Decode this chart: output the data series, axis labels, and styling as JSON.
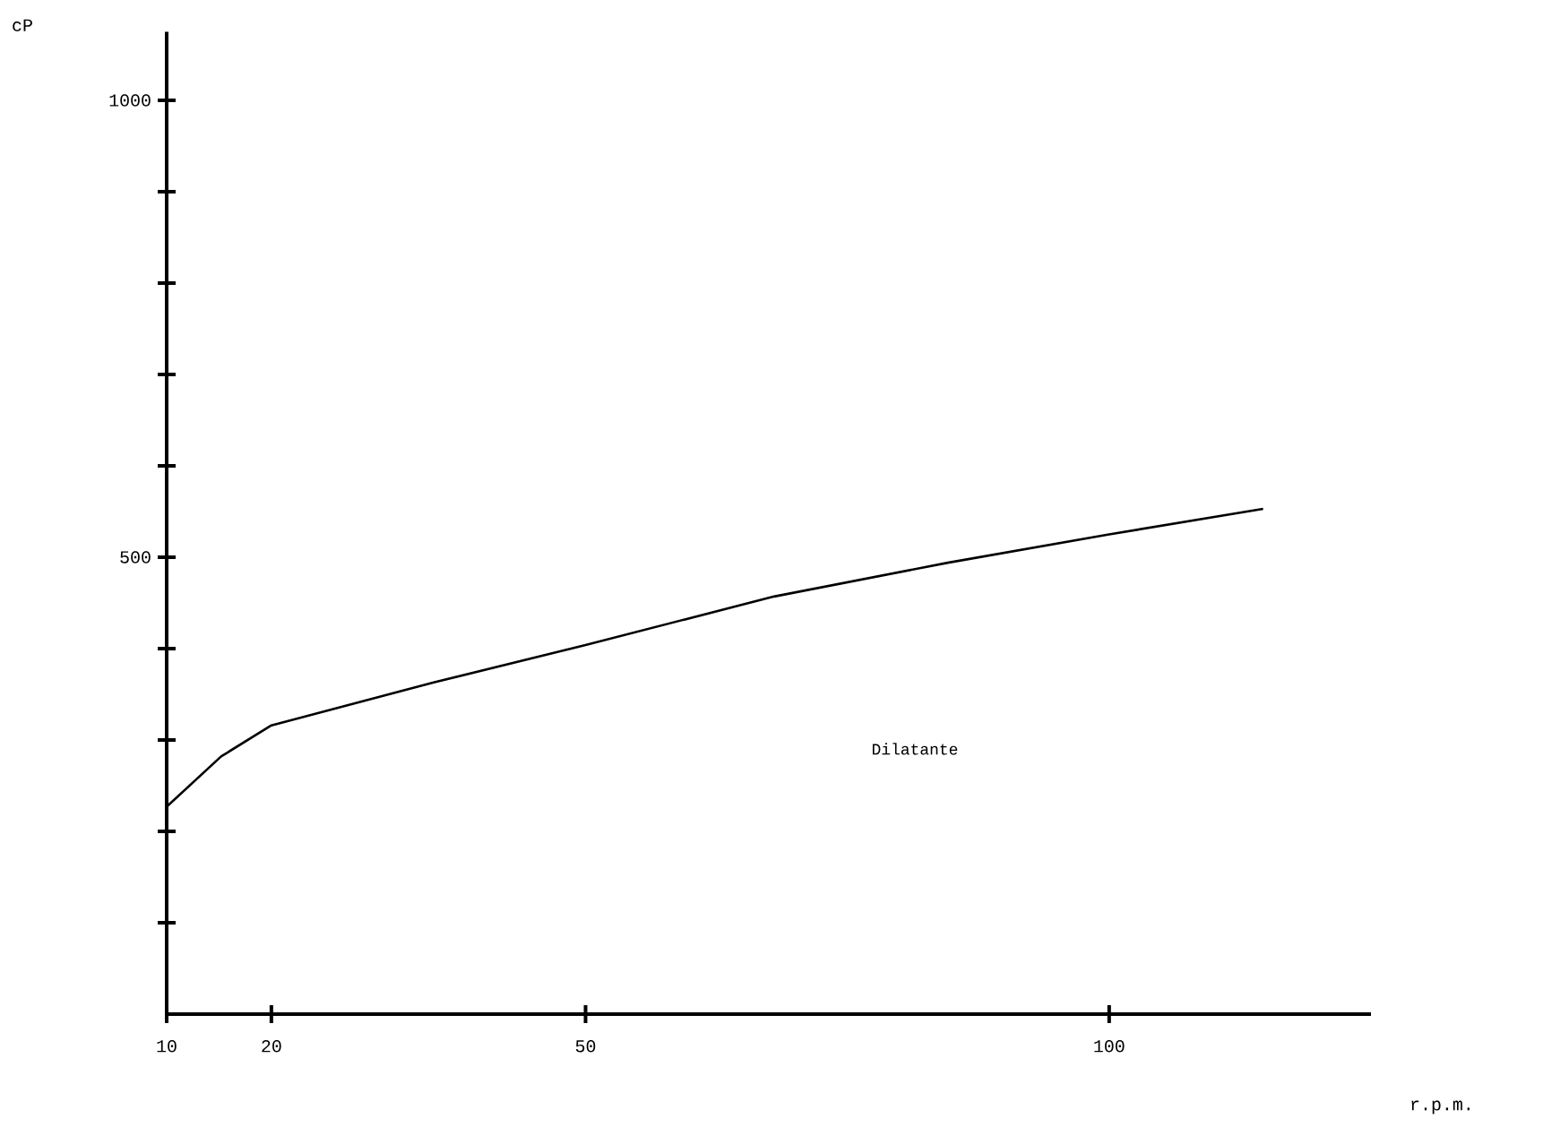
{
  "chart_data": {
    "type": "line",
    "xlabel": "r.p.m.",
    "ylabel": "cP",
    "x": [
      10,
      15.2,
      20,
      35.5,
      50,
      68,
      84.6,
      100,
      114.7
    ],
    "values": [
      227,
      282,
      316,
      363,
      404,
      457,
      494,
      525,
      553
    ],
    "color": "#000000",
    "xlim": [
      10,
      125
    ],
    "xticks": [
      10,
      20,
      50,
      100
    ],
    "ylim": [
      0,
      1075
    ],
    "yticks": [
      {
        "value": 100,
        "label": null
      },
      {
        "value": 200,
        "label": null
      },
      {
        "value": 300,
        "label": null
      },
      {
        "value": 400,
        "label": null
      },
      500,
      {
        "value": 600,
        "label": null
      },
      {
        "value": 700,
        "label": null
      },
      {
        "value": 800,
        "label": null
      },
      {
        "value": 900,
        "label": null
      },
      1000
    ],
    "annotations": [
      "Dilatante"
    ],
    "grid": false,
    "marker": "none",
    "line_style": "solid"
  }
}
